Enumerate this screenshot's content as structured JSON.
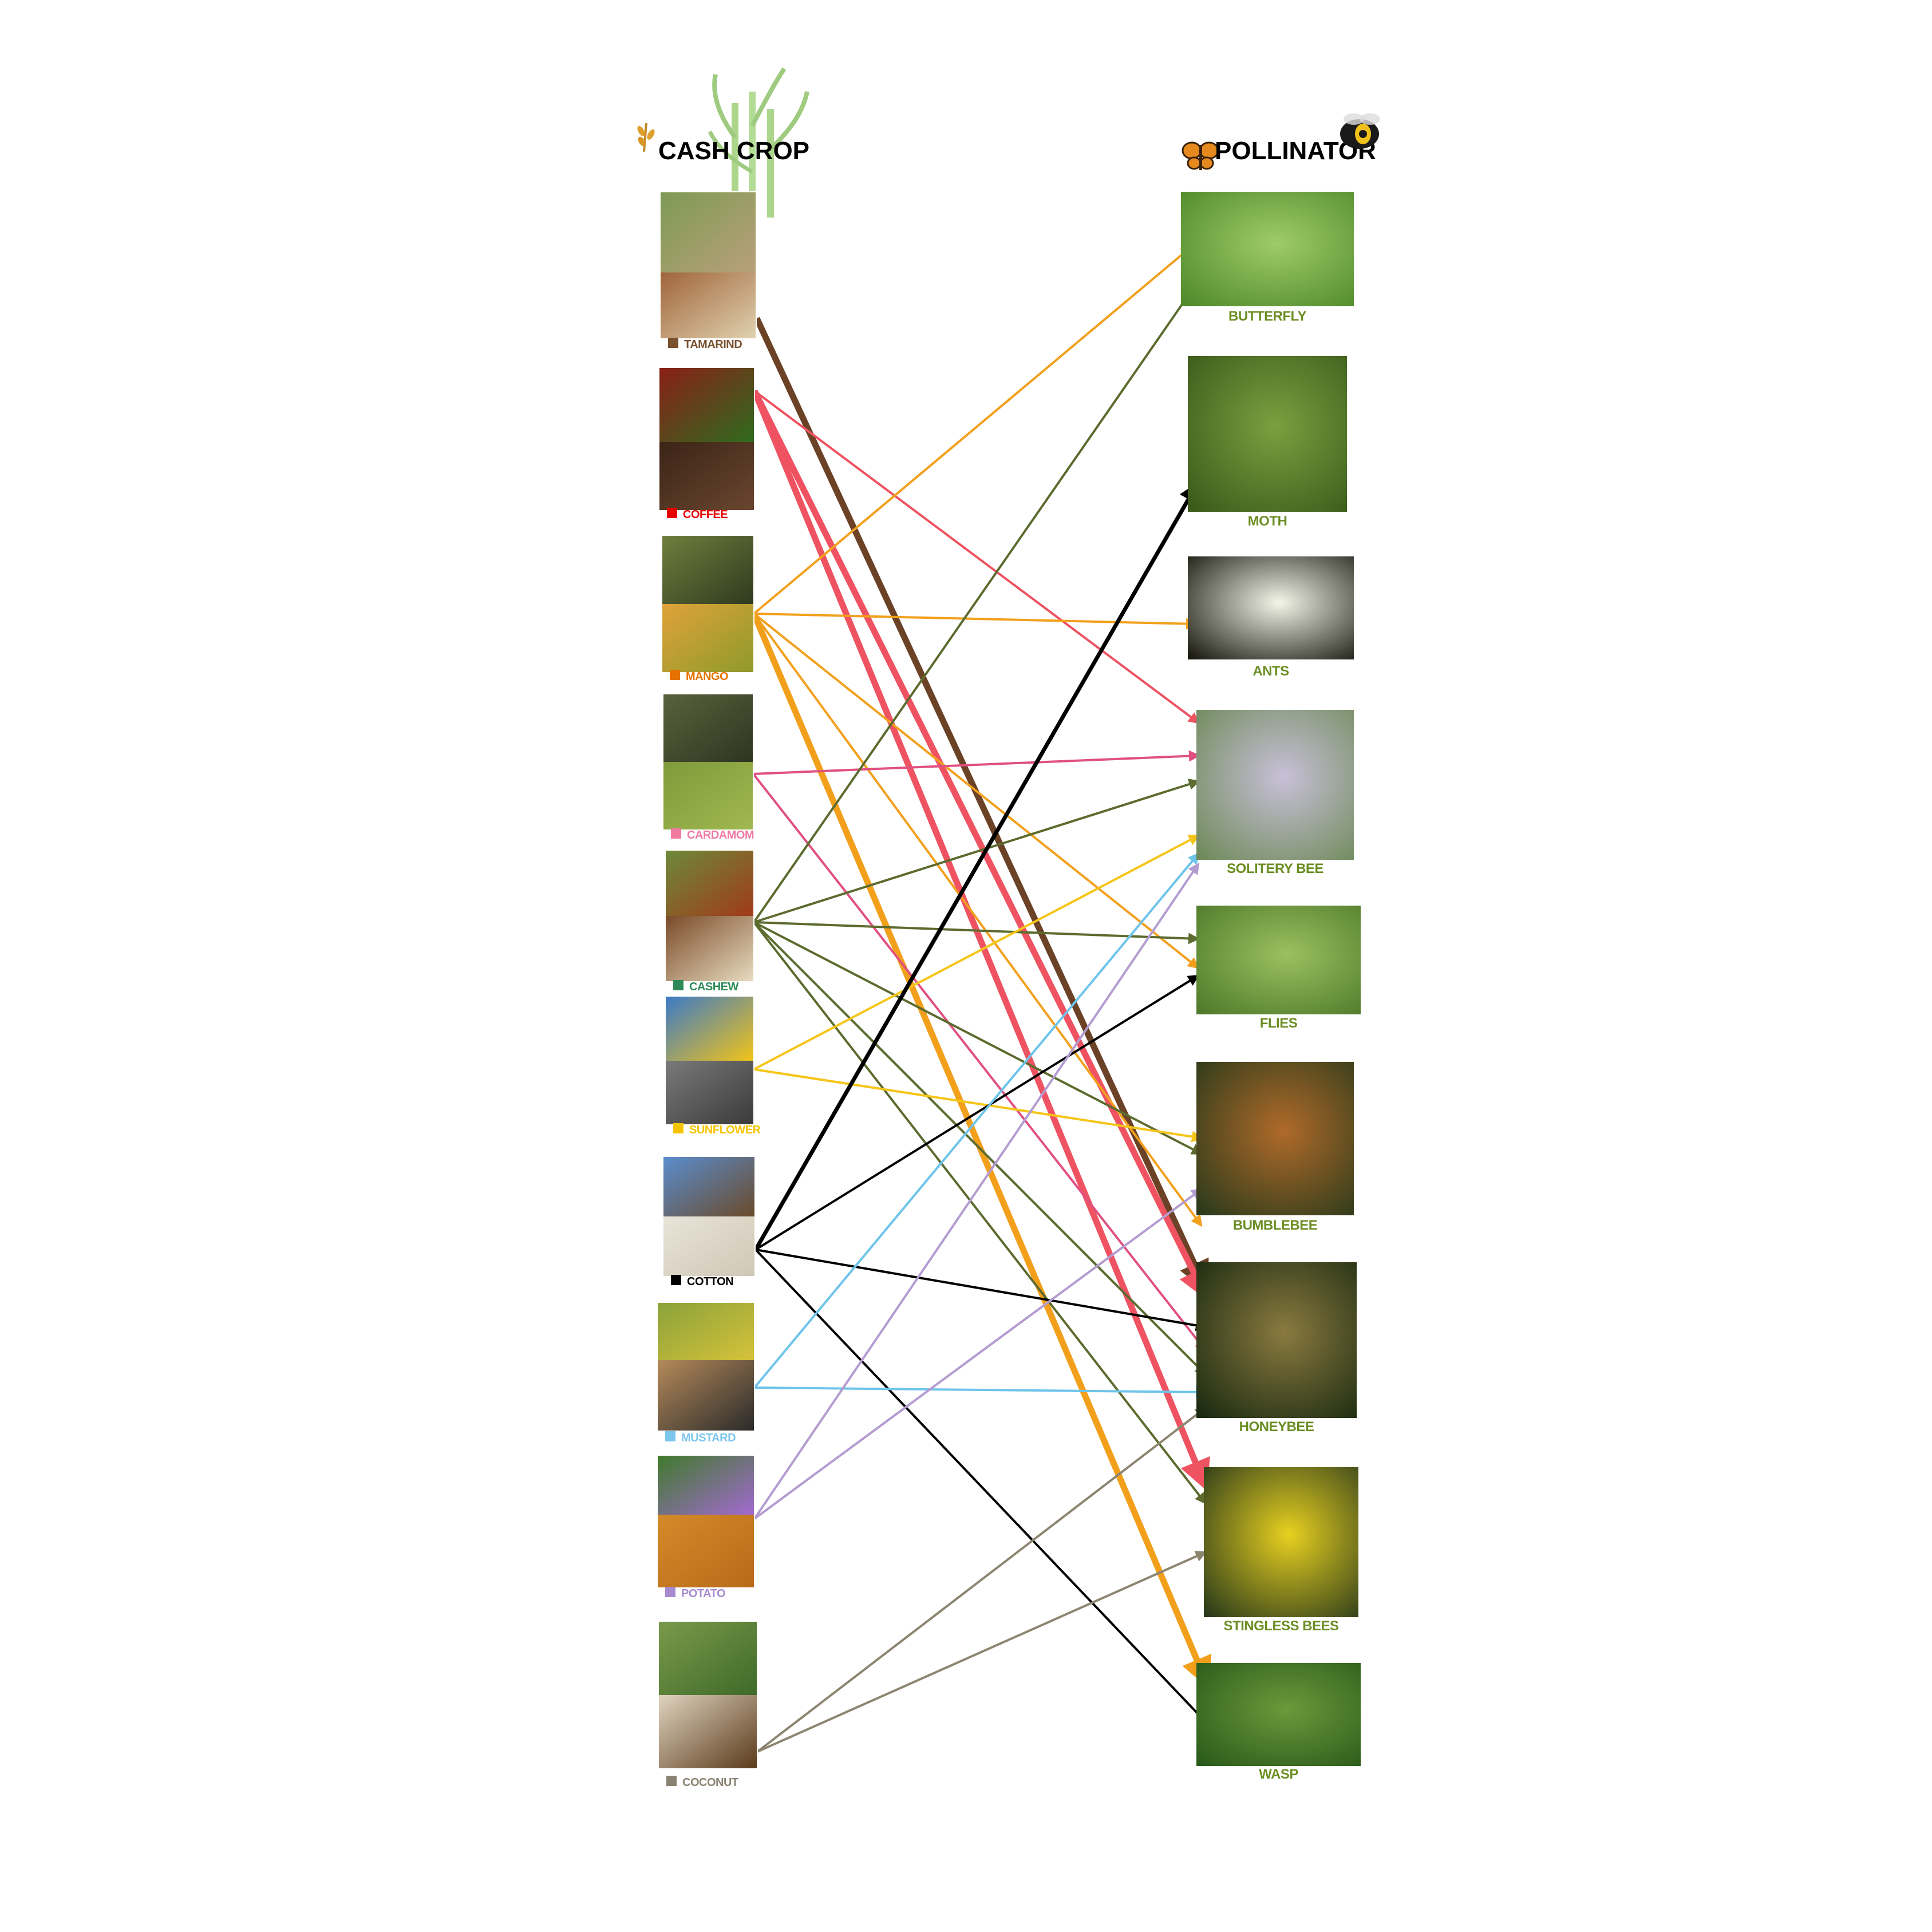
{
  "headers": {
    "crops": "CASH CROP",
    "pollinators": "POLLINATOR"
  },
  "icons": {
    "crops_header": [
      "wheat-icon",
      "sugarcane-icon"
    ],
    "pollinators_header": [
      "butterfly-icon",
      "bumblebee-icon"
    ]
  },
  "crops": [
    {
      "id": "tamarind",
      "label": "TAMARIND",
      "color": "#7a5230",
      "photo": "tamarind-photo"
    },
    {
      "id": "coffee",
      "label": "COFFEE",
      "color": "#e60000",
      "photo": "coffee-photo"
    },
    {
      "id": "mango",
      "label": "MANGO",
      "color": "#e67300",
      "photo": "mango-photo"
    },
    {
      "id": "cardamom",
      "label": "CARDAMOM",
      "color": "#f07aa0",
      "photo": "cardamom-photo"
    },
    {
      "id": "cashew",
      "label": "CASHEW",
      "color": "#2e8b57",
      "photo": "cashew-photo"
    },
    {
      "id": "sunflower",
      "label": "SUNFLOWER",
      "color": "#f5c400",
      "photo": "sunflower-photo"
    },
    {
      "id": "cotton",
      "label": "COTTON",
      "color": "#000000",
      "photo": "cotton-photo"
    },
    {
      "id": "mustard",
      "label": "MUSTARD",
      "color": "#7cc6ee",
      "photo": "mustard-photo"
    },
    {
      "id": "potato",
      "label": "POTATO",
      "color": "#a78ad0",
      "photo": "potato-photo"
    },
    {
      "id": "coconut",
      "label": "COCONUT",
      "color": "#8a8272",
      "photo": "coconut-photo"
    }
  ],
  "pollinators": [
    {
      "id": "butterfly",
      "label": "BUTTERFLY",
      "photo": "butterfly-photo"
    },
    {
      "id": "moth",
      "label": "MOTH",
      "photo": "moth-photo"
    },
    {
      "id": "ants",
      "label": "ANTS",
      "photo": "ants-photo"
    },
    {
      "id": "solitary-bee",
      "label": "SOLITERY BEE",
      "photo": "solitary-bee-photo"
    },
    {
      "id": "flies",
      "label": "FLIES",
      "photo": "flies-photo"
    },
    {
      "id": "bumblebee",
      "label": "BUMBLEBEE",
      "photo": "bumblebee-photo"
    },
    {
      "id": "honeybee",
      "label": "HONEYBEE",
      "photo": "honeybee-photo"
    },
    {
      "id": "stingless-bees",
      "label": "STINGLESS BEES",
      "photo": "stingless-bees-photo"
    },
    {
      "id": "wasp",
      "label": "WASP",
      "photo": "wasp-photo"
    }
  ],
  "links": [
    {
      "from": "tamarind",
      "to": "honeybee",
      "color": "#6b4226",
      "weight": "heavy"
    },
    {
      "from": "coffee",
      "to": "solitary-bee",
      "color": "#ef5361",
      "weight": "light"
    },
    {
      "from": "coffee",
      "to": "honeybee",
      "color": "#ef5361",
      "weight": "heavy"
    },
    {
      "from": "coffee",
      "to": "stingless-bees",
      "color": "#ef5361",
      "weight": "heavy"
    },
    {
      "from": "mango",
      "to": "butterfly",
      "color": "#f2a01c",
      "weight": "light"
    },
    {
      "from": "mango",
      "to": "ants",
      "color": "#f2a01c",
      "weight": "light"
    },
    {
      "from": "mango",
      "to": "flies",
      "color": "#f2a01c",
      "weight": "light"
    },
    {
      "from": "mango",
      "to": "bumblebee",
      "color": "#f2a01c",
      "weight": "light"
    },
    {
      "from": "mango",
      "to": "wasp",
      "color": "#f2a01c",
      "weight": "heavy"
    },
    {
      "from": "cardamom",
      "to": "solitary-bee",
      "color": "#e05080",
      "weight": "light"
    },
    {
      "from": "cardamom",
      "to": "honeybee",
      "color": "#e05080",
      "weight": "light"
    },
    {
      "from": "cashew",
      "to": "butterfly",
      "color": "#5c6b2e",
      "weight": "light"
    },
    {
      "from": "cashew",
      "to": "solitary-bee",
      "color": "#5c6b2e",
      "weight": "light"
    },
    {
      "from": "cashew",
      "to": "flies",
      "color": "#5c6b2e",
      "weight": "light"
    },
    {
      "from": "cashew",
      "to": "bumblebee",
      "color": "#5c6b2e",
      "weight": "light"
    },
    {
      "from": "cashew",
      "to": "honeybee",
      "color": "#5c6b2e",
      "weight": "light"
    },
    {
      "from": "cashew",
      "to": "stingless-bees",
      "color": "#5c6b2e",
      "weight": "light"
    },
    {
      "from": "sunflower",
      "to": "solitary-bee",
      "color": "#f5c518",
      "weight": "light"
    },
    {
      "from": "sunflower",
      "to": "bumblebee",
      "color": "#f5c518",
      "weight": "light"
    },
    {
      "from": "cotton",
      "to": "moth",
      "color": "#000000",
      "weight": "medium"
    },
    {
      "from": "cotton",
      "to": "flies",
      "color": "#000000",
      "weight": "light"
    },
    {
      "from": "cotton",
      "to": "honeybee",
      "color": "#000000",
      "weight": "light"
    },
    {
      "from": "cotton",
      "to": "wasp",
      "color": "#000000",
      "weight": "light"
    },
    {
      "from": "mustard",
      "to": "solitary-bee",
      "color": "#6ec4ea",
      "weight": "light"
    },
    {
      "from": "mustard",
      "to": "honeybee",
      "color": "#6ec4ea",
      "weight": "light"
    },
    {
      "from": "potato",
      "to": "solitary-bee",
      "color": "#b39cd0",
      "weight": "light"
    },
    {
      "from": "potato",
      "to": "bumblebee",
      "color": "#b39cd0",
      "weight": "light"
    },
    {
      "from": "coconut",
      "to": "honeybee",
      "color": "#8c8570",
      "weight": "light"
    },
    {
      "from": "coconut",
      "to": "stingless-bees",
      "color": "#8c8570",
      "weight": "light"
    }
  ]
}
